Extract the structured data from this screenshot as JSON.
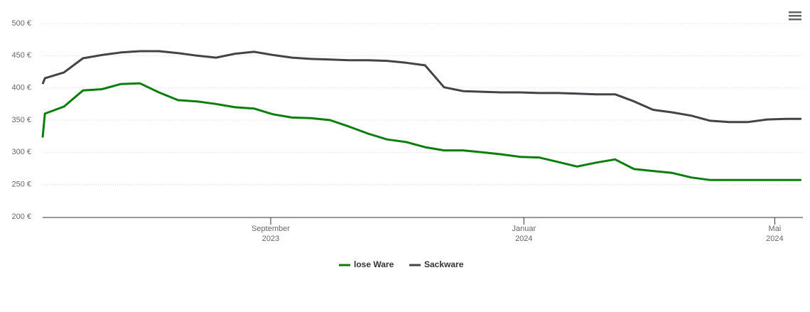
{
  "chart_data": {
    "type": "line",
    "x": [
      2023.367,
      2023.37,
      2023.395,
      2023.42,
      2023.445,
      2023.47,
      2023.495,
      2023.52,
      2023.545,
      2023.57,
      2023.595,
      2023.62,
      2023.645,
      2023.67,
      2023.695,
      2023.72,
      2023.745,
      2023.77,
      2023.795,
      2023.82,
      2023.845,
      2023.87,
      2023.895,
      2023.92,
      2023.945,
      2023.97,
      2023.995,
      2024.02,
      2024.045,
      2024.07,
      2024.095,
      2024.12,
      2024.145,
      2024.17,
      2024.195,
      2024.22,
      2024.245,
      2024.27,
      2024.295,
      2024.32,
      2024.345,
      2024.365
    ],
    "series": [
      {
        "name": "lose Ware",
        "color": "#0a7d0a",
        "values": [
          323,
          360,
          371,
          396,
          398,
          406,
          407,
          393,
          381,
          379,
          375,
          370,
          368,
          359,
          354,
          353,
          350,
          340,
          329,
          320,
          316,
          308,
          303,
          303,
          300,
          297,
          293,
          292,
          285,
          278,
          284,
          289,
          274,
          271,
          268,
          261,
          257,
          257,
          257,
          257,
          257,
          257
        ]
      },
      {
        "name": "Sackware",
        "color": "#434348",
        "values": [
          406,
          415,
          424,
          446,
          451,
          455,
          457,
          457,
          454,
          450,
          447,
          453,
          456,
          451,
          447,
          445,
          444,
          443,
          443,
          442,
          439,
          435,
          401,
          395,
          394,
          393,
          393,
          392,
          392,
          391,
          390,
          390,
          379,
          366,
          362,
          357,
          349,
          347,
          347,
          351,
          352,
          352
        ]
      }
    ],
    "xlim": [
      2023.367,
      2024.367
    ],
    "xticks": [
      {
        "value": 2023.667,
        "label": [
          "September",
          "2023"
        ]
      },
      {
        "value": 2024.0,
        "label": [
          "Januar",
          "2024"
        ]
      },
      {
        "value": 2024.33,
        "label": [
          "Mai",
          "2024"
        ]
      }
    ],
    "ylim": [
      200,
      500
    ],
    "yticks": [
      {
        "value": 200,
        "label": "200 €"
      },
      {
        "value": 250,
        "label": "250 €"
      },
      {
        "value": 300,
        "label": "300 €"
      },
      {
        "value": 350,
        "label": "350 €"
      },
      {
        "value": 400,
        "label": "400 €"
      },
      {
        "value": 450,
        "label": "450 €"
      },
      {
        "value": 500,
        "label": "500 €"
      }
    ],
    "grid": true
  }
}
